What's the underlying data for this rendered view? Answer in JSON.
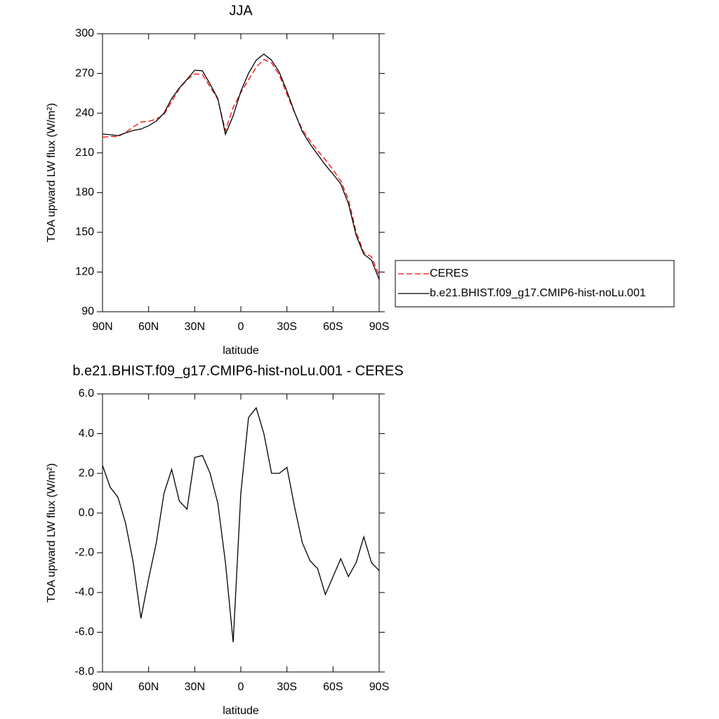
{
  "chart_data": [
    {
      "type": "line",
      "title": "JJA",
      "xlabel": "latitude",
      "ylabel": "TOA upward LW flux (W/m²)",
      "x": [
        90,
        85,
        80,
        75,
        70,
        65,
        60,
        55,
        50,
        45,
        40,
        35,
        30,
        25,
        20,
        15,
        10,
        5,
        0,
        -5,
        -10,
        -15,
        -20,
        -25,
        -30,
        -35,
        -40,
        -45,
        -50,
        -55,
        -60,
        -65,
        -70,
        -75,
        -80,
        -85,
        -90
      ],
      "xlim": [
        90,
        -90
      ],
      "xticks": [
        {
          "value": 90,
          "label": "90N"
        },
        {
          "value": 60,
          "label": "60N"
        },
        {
          "value": 30,
          "label": "30N"
        },
        0,
        {
          "value": -30,
          "label": "30S"
        },
        {
          "value": -60,
          "label": "60S"
        },
        {
          "value": -90,
          "label": "90S"
        }
      ],
      "ylim": [
        90,
        300
      ],
      "yticks": [
        90,
        120,
        150,
        180,
        210,
        240,
        270,
        300
      ],
      "legend": "right",
      "series": [
        {
          "name": "CERES",
          "color": "#ff0000",
          "dashed": true,
          "values": [
            221.8,
            222.4,
            222.2,
            225.5,
            229.5,
            233.3,
            233.8,
            235.5,
            239,
            248.8,
            258.4,
            265.3,
            269.6,
            269.1,
            260,
            250.5,
            226.5,
            244.5,
            255.5,
            265.2,
            274.7,
            280.6,
            278,
            269,
            254.2,
            240.3,
            227.5,
            219.2,
            211.6,
            204.9,
            197.2,
            188.8,
            174.9,
            150.3,
            134.7,
            131.5,
            117.3
          ]
        },
        {
          "name": "b.e21.BHIST.f09_g17.CMIP6-hist-noLu.001",
          "color": "#000000",
          "dashed": false,
          "values": [
            224.2,
            223.7,
            223,
            225,
            227,
            228,
            230.5,
            234,
            240,
            251,
            259,
            265.5,
            272.4,
            272,
            262,
            251,
            224,
            238,
            256.5,
            270,
            280,
            284.6,
            280,
            271,
            256.5,
            240.6,
            226,
            216.8,
            208.8,
            200.8,
            194,
            186.5,
            171.7,
            147.8,
            133.5,
            129,
            114.4
          ]
        }
      ]
    },
    {
      "type": "line",
      "title": "b.e21.BHIST.f09_g17.CMIP6-hist-noLu.001 - CERES",
      "xlabel": "latitude",
      "ylabel": "TOA upward LW flux (W/m²)",
      "x": [
        90,
        85,
        80,
        75,
        70,
        65,
        60,
        55,
        50,
        45,
        40,
        35,
        30,
        25,
        20,
        15,
        10,
        5,
        0,
        -5,
        -10,
        -15,
        -20,
        -25,
        -30,
        -35,
        -40,
        -45,
        -50,
        -55,
        -60,
        -65,
        -70,
        -75,
        -80,
        -85,
        -90
      ],
      "xlim": [
        90,
        -90
      ],
      "xticks": [
        {
          "value": 90,
          "label": "90N"
        },
        {
          "value": 60,
          "label": "60N"
        },
        {
          "value": 30,
          "label": "30N"
        },
        0,
        {
          "value": -30,
          "label": "30S"
        },
        {
          "value": -60,
          "label": "60S"
        },
        {
          "value": -90,
          "label": "90S"
        }
      ],
      "ylim": [
        -8,
        6
      ],
      "yticks": [
        {
          "value": -8,
          "label": "-8.0"
        },
        {
          "value": -6,
          "label": "-6.0"
        },
        {
          "value": -4,
          "label": "-4.0"
        },
        {
          "value": -2,
          "label": "-2.0"
        },
        {
          "value": 0,
          "label": "0.0"
        },
        {
          "value": 2,
          "label": "2.0"
        },
        {
          "value": 4,
          "label": "4.0"
        },
        {
          "value": 6,
          "label": "6.0"
        }
      ],
      "color": "#000000",
      "values": [
        2.4,
        1.3,
        0.8,
        -0.5,
        -2.5,
        -5.3,
        -3.3,
        -1.5,
        1.0,
        2.2,
        0.6,
        0.2,
        2.8,
        2.9,
        2.0,
        0.5,
        -2.5,
        -6.5,
        1.0,
        4.8,
        5.3,
        4.0,
        2.0,
        2.0,
        2.3,
        0.3,
        -1.5,
        -2.4,
        -2.8,
        -4.1,
        -3.2,
        -2.3,
        -3.2,
        -2.5,
        -1.2,
        -2.5,
        -2.9
      ]
    }
  ]
}
